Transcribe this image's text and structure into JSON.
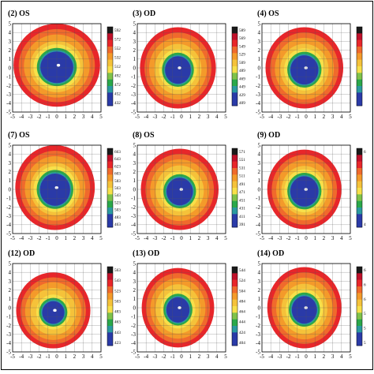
{
  "panels": [
    {
      "title": "(2) OS",
      "colorbar": [
        "592",
        "572",
        "552",
        "532",
        "512",
        "492",
        "472",
        "452",
        "432"
      ]
    },
    {
      "title": "(3) OD",
      "colorbar": [
        "589",
        "569",
        "549",
        "529",
        "509",
        "489",
        "469",
        "449",
        "429",
        "409"
      ]
    },
    {
      "title": "(4) OS",
      "colorbar": []
    },
    {
      "title": "(7) OS",
      "colorbar": [
        "663",
        "643",
        "623",
        "603",
        "583",
        "563",
        "543",
        "523",
        "503",
        "483",
        "463"
      ]
    },
    {
      "title": "(8) OS",
      "colorbar": [
        "571",
        "551",
        "531",
        "511",
        "491",
        "471",
        "451",
        "431",
        "411",
        "391"
      ]
    },
    {
      "title": "(9) OD",
      "colorbar": [
        "6",
        "4"
      ]
    },
    {
      "title": "(12) OD",
      "colorbar": [
        "563",
        "543",
        "523",
        "503",
        "483",
        "463",
        "443",
        "423"
      ]
    },
    {
      "title": "(13) OD",
      "colorbar": [
        "544",
        "524",
        "504",
        "484",
        "464",
        "444",
        "424",
        "404"
      ]
    },
    {
      "title": "(14) OD",
      "colorbar": [
        "6",
        "6",
        "6",
        "5",
        "5",
        "5"
      ]
    }
  ],
  "axis_ticks": [
    "-5",
    "-4",
    "-3",
    "-2",
    "-1",
    "0",
    "1",
    "2",
    "3",
    "4",
    "5"
  ],
  "colors": {
    "ring_outer": "#e8262a",
    "ring_orange": "#f49a2a",
    "ring_yellow": "#f7e04a",
    "ring_green": "#2aa84a",
    "ring_teal": "#2a9aa0",
    "center_blue": "#2a3aa8"
  }
}
